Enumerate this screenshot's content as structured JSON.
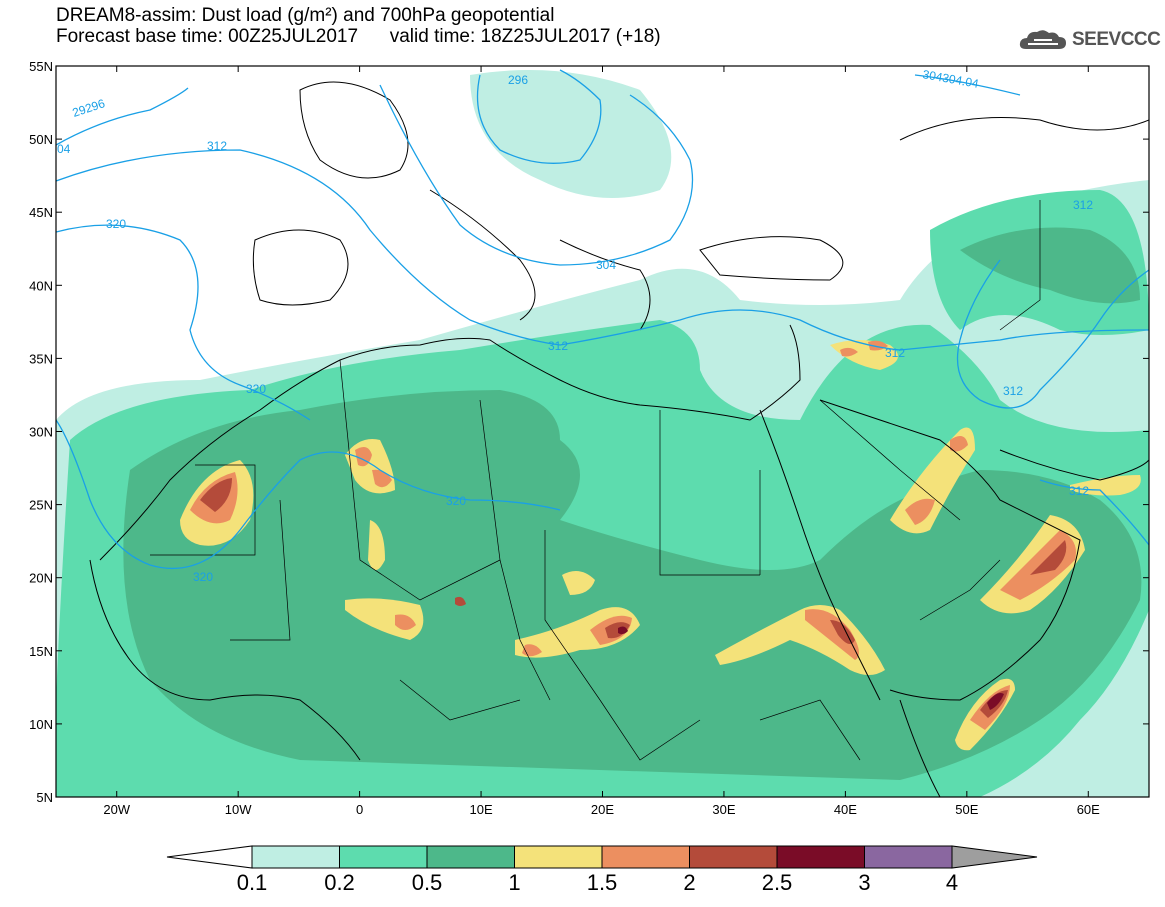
{
  "header": {
    "title_line1": "DREAM8-assim: Dust load (g/m²) and 700hPa geopotential",
    "title_line2": "Forecast base time: 00Z25JUL2017      valid time: 18Z25JUL2017 (+18)",
    "logo_text": "SEEVCCC",
    "logo_icon": "cloud-icon"
  },
  "map": {
    "lon_range": [
      -25,
      65
    ],
    "lat_range": [
      5,
      55
    ],
    "lat_ticks": [
      "55N",
      "50N",
      "45N",
      "40N",
      "35N",
      "30N",
      "25N",
      "20N",
      "15N",
      "10N",
      "5N"
    ],
    "lon_ticks": [
      "20W",
      "10W",
      "0",
      "10E",
      "20E",
      "30E",
      "40E",
      "50E",
      "60E"
    ],
    "contour_labels": [
      "29296",
      "04",
      "312",
      "320",
      "296",
      "304",
      "304304.04",
      "312",
      "320",
      "320",
      "320",
      "312",
      "312",
      "312",
      "312"
    ]
  },
  "colorbar": {
    "labels": [
      "0.1",
      "0.2",
      "0.5",
      "1",
      "1.5",
      "2",
      "2.5",
      "3",
      "4"
    ],
    "colors": [
      "#ffffff",
      "#bfeee3",
      "#5ddcae",
      "#4db88a",
      "#f4e27a",
      "#ec8f60",
      "#b44b3a",
      "#7a0c27",
      "#8a67a0",
      "#9e9e9e"
    ]
  }
}
